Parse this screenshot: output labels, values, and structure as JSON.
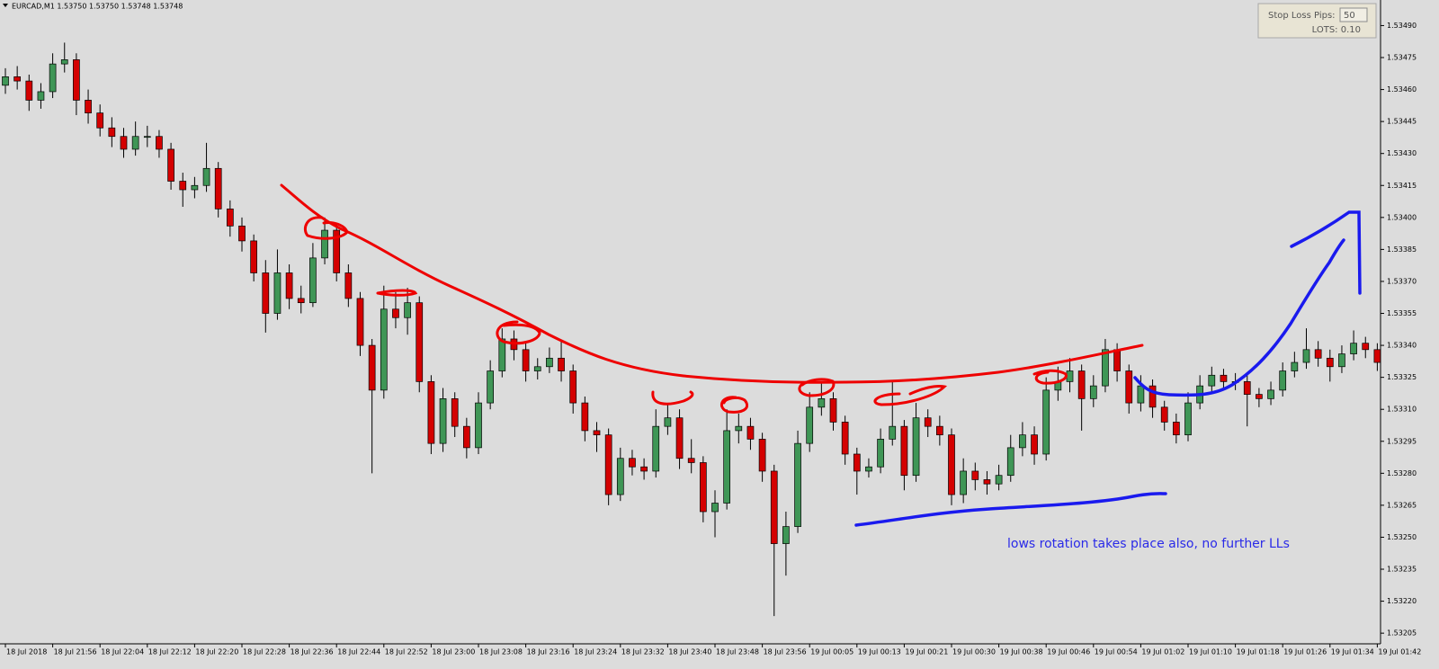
{
  "chart_data": {
    "type": "candlestick",
    "title": "EURCAD,M1  1.53750 1.53750 1.53748 1.53748",
    "annotation": "lows rotation takes place also, no further LLs",
    "up_color": "#3f9656",
    "down_color": "#d40000",
    "wick_color": "#000000",
    "ylim": [
      1.532,
      1.53502
    ],
    "yticks": [
      {
        "value": 1.5349,
        "label": "1.53490"
      },
      1.53475,
      {
        "value": 1.5346,
        "label": "1.53460"
      },
      1.53445,
      {
        "value": 1.5343,
        "label": "1.53430"
      },
      1.53415,
      {
        "value": 1.534,
        "label": "1.53400"
      },
      1.53385,
      {
        "value": 1.5337,
        "label": "1.53370"
      },
      1.53355,
      {
        "value": 1.5334,
        "label": "1.53340"
      },
      1.53325,
      {
        "value": 1.5331,
        "label": "1.53310"
      },
      1.53295,
      {
        "value": 1.5328,
        "label": "1.53280"
      },
      1.53265,
      {
        "value": 1.5325,
        "label": "1.53250"
      },
      1.53235,
      {
        "value": 1.5322,
        "label": "1.53220"
      },
      1.53205
    ],
    "categories": [
      "18 Jul 2018",
      null,
      null,
      null,
      "18 Jul 21:56",
      null,
      null,
      null,
      "18 Jul 22:04",
      null,
      null,
      null,
      "18 Jul 22:12",
      null,
      null,
      null,
      "18 Jul 22:20",
      null,
      null,
      null,
      "18 Jul 22:28",
      null,
      null,
      null,
      "18 Jul 22:36",
      null,
      null,
      null,
      "18 Jul 22:44",
      null,
      null,
      null,
      "18 Jul 22:52",
      null,
      null,
      null,
      "18 Jul 23:00",
      null,
      null,
      null,
      "18 Jul 23:08",
      null,
      null,
      null,
      "18 Jul 23:16",
      null,
      null,
      null,
      "18 Jul 23:24",
      null,
      null,
      null,
      "18 Jul 23:32",
      null,
      null,
      null,
      "18 Jul 23:40",
      null,
      null,
      null,
      "18 Jul 23:48",
      null,
      null,
      null,
      "18 Jul 23:56",
      null,
      null,
      null,
      "19 Jul 00:05",
      null,
      null,
      null,
      "19 Jul 00:13",
      null,
      null,
      null,
      "19 Jul 00:21",
      null,
      null,
      null,
      "19 Jul 00:30",
      null,
      null,
      null,
      "19 Jul 00:38",
      null,
      null,
      null,
      "19 Jul 00:46",
      null,
      null,
      null,
      "19 Jul 00:54",
      null,
      null,
      null,
      "19 Jul 01:02",
      null,
      null,
      null,
      "19 Jul 01:10",
      null,
      null,
      null,
      "19 Jul 01:18",
      null,
      null,
      null,
      "19 Jul 01:26",
      null,
      null,
      null,
      "19 Jul 01:34",
      null,
      null,
      null,
      "19 Jul 01:42"
    ],
    "open": [
      1.53462,
      1.53466,
      1.53464,
      1.53455,
      1.53459,
      1.53472,
      1.53474,
      1.53455,
      1.53449,
      1.53442,
      1.53438,
      1.53432,
      1.53438,
      1.53438,
      1.53432,
      1.53417,
      1.53413,
      1.53415,
      1.53423,
      1.53404,
      1.53396,
      1.53389,
      1.53374,
      1.53355,
      1.53374,
      1.53362,
      1.5336,
      1.53381,
      1.53394,
      1.53374,
      1.53362,
      1.5334,
      1.53319,
      1.53357,
      1.53353,
      1.5336,
      1.53323,
      1.53294,
      1.53315,
      1.53302,
      1.53292,
      1.53313,
      1.53328,
      1.53343,
      1.53338,
      1.53328,
      1.5333,
      1.53334,
      1.53328,
      1.53313,
      1.533,
      1.53298,
      1.5327,
      1.53287,
      1.53283,
      1.53281,
      1.53302,
      1.53306,
      1.53287,
      1.53285,
      1.53262,
      1.53266,
      1.533,
      1.53302,
      1.53296,
      1.53281,
      1.53247,
      1.53255,
      1.53294,
      1.53311,
      1.53315,
      1.53304,
      1.53289,
      1.53281,
      1.53283,
      1.53296,
      1.53302,
      1.53279,
      1.53306,
      1.53302,
      1.53298,
      1.5327,
      1.53281,
      1.53277,
      1.53275,
      1.53279,
      1.53292,
      1.53298,
      1.53289,
      1.53319,
      1.53323,
      1.53328,
      1.53315,
      1.53321,
      1.53338,
      1.53328,
      1.53313,
      1.53321,
      1.53311,
      1.53304,
      1.53298,
      1.53313,
      1.53321,
      1.53326,
      1.53323,
      1.53323,
      1.53317,
      1.53315,
      1.53319,
      1.53328,
      1.53332,
      1.53338,
      1.53334,
      1.5333,
      1.53336,
      1.53341,
      1.53338
    ],
    "high": [
      1.5347,
      1.53471,
      1.53467,
      1.53463,
      1.53477,
      1.53482,
      1.53477,
      1.5346,
      1.53453,
      1.53447,
      1.53442,
      1.53445,
      1.53443,
      1.53441,
      1.53435,
      1.53421,
      1.53419,
      1.53435,
      1.53426,
      1.53408,
      1.534,
      1.53392,
      1.5338,
      1.53385,
      1.53378,
      1.53368,
      1.53388,
      1.534,
      1.53397,
      1.53378,
      1.53365,
      1.53343,
      1.53368,
      1.53365,
      1.53367,
      1.53363,
      1.53326,
      1.5332,
      1.53318,
      1.53306,
      1.53318,
      1.53333,
      1.53348,
      1.53347,
      1.53341,
      1.53334,
      1.53339,
      1.53342,
      1.53331,
      1.53316,
      1.53304,
      1.53301,
      1.53292,
      1.53291,
      1.53287,
      1.5331,
      1.53312,
      1.5331,
      1.53296,
      1.53288,
      1.53272,
      1.5331,
      1.53308,
      1.53306,
      1.53299,
      1.53284,
      1.53262,
      1.533,
      1.53318,
      1.53323,
      1.53318,
      1.53307,
      1.53292,
      1.53287,
      1.53301,
      1.53323,
      1.53305,
      1.53313,
      1.5331,
      1.53307,
      1.53301,
      1.53287,
      1.53285,
      1.53281,
      1.53284,
      1.53298,
      1.53304,
      1.53302,
      1.53325,
      1.5333,
      1.53334,
      1.53331,
      1.53326,
      1.53343,
      1.53341,
      1.53331,
      1.53326,
      1.53324,
      1.53314,
      1.53308,
      1.53318,
      1.53326,
      1.5333,
      1.53329,
      1.53327,
      1.53326,
      1.5332,
      1.53323,
      1.53332,
      1.53337,
      1.53348,
      1.53342,
      1.53338,
      1.5334,
      1.53347,
      1.53344,
      1.53341
    ],
    "low": [
      1.53458,
      1.5346,
      1.5345,
      1.53451,
      1.53456,
      1.53468,
      1.53448,
      1.53444,
      1.53438,
      1.53433,
      1.53428,
      1.53429,
      1.53433,
      1.53428,
      1.53413,
      1.53405,
      1.53409,
      1.53412,
      1.534,
      1.53391,
      1.53384,
      1.5337,
      1.53346,
      1.53352,
      1.53357,
      1.53355,
      1.53358,
      1.53378,
      1.5337,
      1.53358,
      1.53335,
      1.5328,
      1.53315,
      1.53348,
      1.53345,
      1.53318,
      1.53289,
      1.5329,
      1.53297,
      1.53287,
      1.53289,
      1.5331,
      1.53325,
      1.53333,
      1.53323,
      1.53324,
      1.53327,
      1.53323,
      1.53308,
      1.53295,
      1.5329,
      1.53265,
      1.53267,
      1.53279,
      1.53277,
      1.53278,
      1.53298,
      1.53282,
      1.5328,
      1.53257,
      1.5325,
      1.53263,
      1.53294,
      1.53291,
      1.53276,
      1.53213,
      1.53232,
      1.53252,
      1.5329,
      1.53307,
      1.533,
      1.53284,
      1.5327,
      1.53278,
      1.5328,
      1.53293,
      1.53272,
      1.53276,
      1.53297,
      1.53293,
      1.53265,
      1.53266,
      1.53272,
      1.5327,
      1.53272,
      1.53276,
      1.53288,
      1.53284,
      1.53286,
      1.53314,
      1.53318,
      1.533,
      1.53311,
      1.53318,
      1.53323,
      1.53308,
      1.53309,
      1.53306,
      1.533,
      1.53294,
      1.53295,
      1.5331,
      1.53318,
      1.53319,
      1.53319,
      1.53302,
      1.53311,
      1.53312,
      1.53316,
      1.53325,
      1.53329,
      1.5333,
      1.53323,
      1.53327,
      1.53333,
      1.53334,
      1.53328
    ],
    "close": [
      1.53466,
      1.53464,
      1.53455,
      1.53459,
      1.53472,
      1.53474,
      1.53455,
      1.53449,
      1.53442,
      1.53438,
      1.53432,
      1.53438,
      1.53438,
      1.53432,
      1.53417,
      1.53413,
      1.53415,
      1.53423,
      1.53404,
      1.53396,
      1.53389,
      1.53374,
      1.53355,
      1.53374,
      1.53362,
      1.5336,
      1.53381,
      1.53394,
      1.53374,
      1.53362,
      1.5334,
      1.53319,
      1.53357,
      1.53353,
      1.5336,
      1.53323,
      1.53294,
      1.53315,
      1.53302,
      1.53292,
      1.53313,
      1.53328,
      1.53343,
      1.53338,
      1.53328,
      1.5333,
      1.53334,
      1.53328,
      1.53313,
      1.533,
      1.53298,
      1.5327,
      1.53287,
      1.53283,
      1.53281,
      1.53302,
      1.53306,
      1.53287,
      1.53285,
      1.53262,
      1.53266,
      1.533,
      1.53302,
      1.53296,
      1.53281,
      1.53247,
      1.53255,
      1.53294,
      1.53311,
      1.53315,
      1.53304,
      1.53289,
      1.53281,
      1.53283,
      1.53296,
      1.53302,
      1.53279,
      1.53306,
      1.53302,
      1.53298,
      1.5327,
      1.53281,
      1.53277,
      1.53275,
      1.53279,
      1.53292,
      1.53298,
      1.53289,
      1.53319,
      1.53323,
      1.53328,
      1.53315,
      1.53321,
      1.53338,
      1.53328,
      1.53313,
      1.53321,
      1.53311,
      1.53304,
      1.53298,
      1.53313,
      1.53321,
      1.53326,
      1.53323,
      1.53323,
      1.53317,
      1.53315,
      1.53319,
      1.53328,
      1.53332,
      1.53338,
      1.53334,
      1.5333,
      1.53336,
      1.53341,
      1.53338,
      1.53332
    ]
  },
  "panel": {
    "stop_loss_label": "Stop Loss Pips:",
    "stop_loss_value": "50",
    "lots_label": "LOTS: 0.10"
  }
}
